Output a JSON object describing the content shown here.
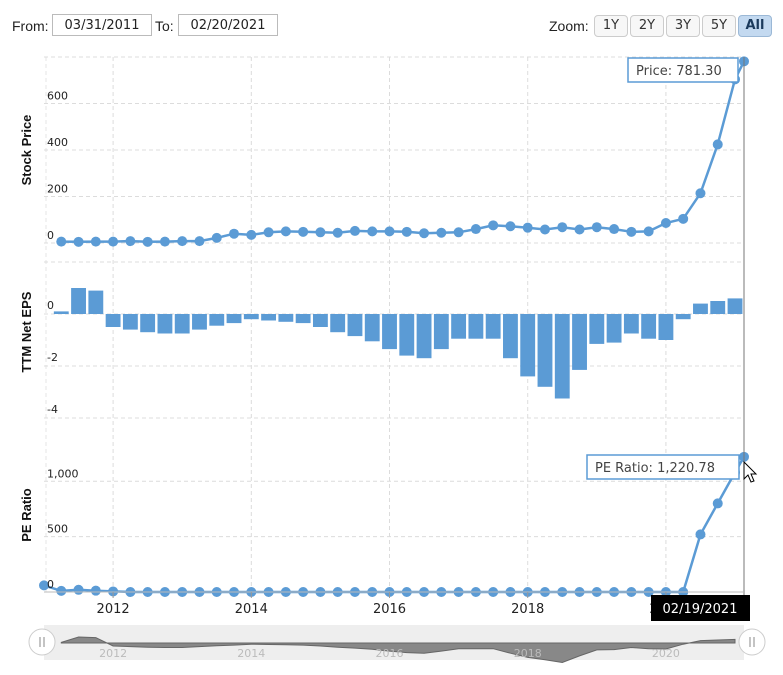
{
  "controls": {
    "from_label": "From:",
    "from_value": "03/31/2011",
    "to_label": "To:",
    "to_value": "02/20/2021",
    "zoom_label": "Zoom:",
    "zoom_buttons": [
      "1Y",
      "2Y",
      "3Y",
      "5Y",
      "All"
    ],
    "zoom_active": "All"
  },
  "colors": {
    "series": "#5b9bd5",
    "navigator_area": "#888888",
    "navigator_bg": "#eeeeee"
  },
  "chart_data": [
    {
      "type": "line",
      "ylabel": "Stock Price",
      "x": [
        2011.25,
        2011.5,
        2011.75,
        2012.0,
        2012.25,
        2012.5,
        2012.75,
        2013.0,
        2013.25,
        2013.5,
        2013.75,
        2014.0,
        2014.25,
        2014.5,
        2014.75,
        2015.0,
        2015.25,
        2015.5,
        2015.75,
        2016.0,
        2016.25,
        2016.5,
        2016.75,
        2017.0,
        2017.25,
        2017.5,
        2017.75,
        2018.0,
        2018.25,
        2018.5,
        2018.75,
        2019.0,
        2019.25,
        2019.5,
        2019.75,
        2020.0,
        2020.25,
        2020.5,
        2020.75,
        2021.0,
        2021.13
      ],
      "values": [
        6,
        5,
        6,
        6,
        8,
        5,
        6,
        8,
        8,
        22,
        40,
        35,
        46,
        50,
        48,
        46,
        44,
        52,
        50,
        50,
        48,
        42,
        44,
        46,
        60,
        76,
        72,
        66,
        58,
        68,
        58,
        68,
        60,
        48,
        50,
        86,
        104,
        214,
        424,
        704,
        781.3
      ],
      "yticks": [
        0,
        200,
        400,
        600
      ],
      "ylim": [
        0,
        800
      ],
      "tooltip": "Price: 781.30"
    },
    {
      "type": "bar",
      "ylabel": "TTM Net EPS",
      "x": [
        2011.25,
        2011.5,
        2011.75,
        2012.0,
        2012.25,
        2012.5,
        2012.75,
        2013.0,
        2013.25,
        2013.5,
        2013.75,
        2014.0,
        2014.25,
        2014.5,
        2014.75,
        2015.0,
        2015.25,
        2015.5,
        2015.75,
        2016.0,
        2016.25,
        2016.5,
        2016.75,
        2017.0,
        2017.25,
        2017.5,
        2017.75,
        2018.0,
        2018.25,
        2018.5,
        2018.75,
        2019.0,
        2019.25,
        2019.5,
        2019.75,
        2020.0,
        2020.25,
        2020.5,
        2020.75,
        2021.0
      ],
      "values": [
        0.1,
        1.0,
        0.9,
        -0.5,
        -0.6,
        -0.7,
        -0.75,
        -0.75,
        -0.6,
        -0.45,
        -0.35,
        -0.2,
        -0.25,
        -0.3,
        -0.35,
        -0.5,
        -0.7,
        -0.85,
        -1.05,
        -1.35,
        -1.6,
        -1.7,
        -1.35,
        -0.95,
        -0.95,
        -0.95,
        -1.7,
        -2.4,
        -2.8,
        -3.25,
        -2.15,
        -1.15,
        -1.1,
        -0.75,
        -0.95,
        -1.0,
        -0.2,
        0.4,
        0.5,
        0.6
      ],
      "yticks": [
        0,
        -2,
        -4
      ],
      "ylim": [
        -4,
        2
      ]
    },
    {
      "type": "line",
      "ylabel": "PE Ratio",
      "x": [
        2011.0,
        2011.25,
        2011.5,
        2011.75,
        2012.0,
        2012.25,
        2012.5,
        2012.75,
        2013.0,
        2013.25,
        2013.5,
        2013.75,
        2014.0,
        2014.25,
        2014.5,
        2014.75,
        2015.0,
        2015.25,
        2015.5,
        2015.75,
        2016.0,
        2016.25,
        2016.5,
        2016.75,
        2017.0,
        2017.25,
        2017.5,
        2017.75,
        2018.0,
        2018.25,
        2018.5,
        2018.75,
        2019.0,
        2019.25,
        2019.5,
        2019.75,
        2020.0,
        2020.25,
        2020.5,
        2020.75,
        2021.0,
        2021.13
      ],
      "values": [
        60,
        10,
        20,
        12,
        5,
        0,
        0,
        0,
        0,
        0,
        0,
        0,
        0,
        0,
        0,
        0,
        0,
        0,
        0,
        0,
        0,
        0,
        0,
        0,
        0,
        0,
        0,
        0,
        0,
        0,
        0,
        0,
        0,
        0,
        0,
        0,
        0,
        0,
        520,
        800,
        1080,
        1220.78
      ],
      "yticks": [
        0,
        500,
        1000
      ],
      "ytick_labels": [
        "0",
        "500",
        "1,000"
      ],
      "ylim": [
        0,
        1400
      ],
      "tooltip": "PE Ratio: 1,220.78"
    }
  ],
  "x_axis": {
    "ticks": [
      2012,
      2014,
      2016,
      2018,
      2020
    ],
    "tick_labels": [
      "2012",
      "2014",
      "2016",
      "2018",
      "2020"
    ],
    "current_date": "02/19/2021"
  },
  "navigator": {
    "ticks": [
      2012,
      2014,
      2016,
      2018,
      2020
    ],
    "tick_labels": [
      "2012",
      "2014",
      "2016",
      "2018",
      "2020"
    ]
  }
}
